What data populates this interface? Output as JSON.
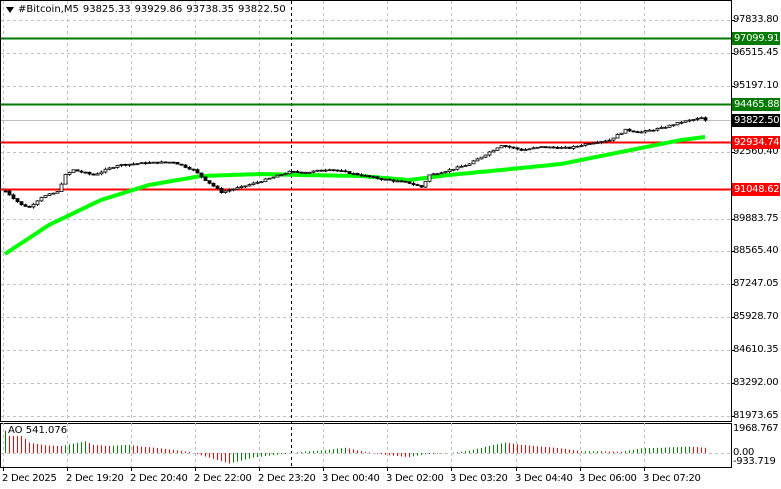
{
  "header": {
    "symbol": "#Bitcoin,M5",
    "open": "93825.33",
    "high": "93929.86",
    "low": "93738.35",
    "close": "93822.50",
    "menu_icon": "triangle-down-icon"
  },
  "price_axis": [
    "97833.80",
    "96515.45",
    "95197.10",
    "92560.40",
    "89883.75",
    "88565.40",
    "87247.05",
    "85928.70",
    "84610.35",
    "83292.00",
    "81973.65"
  ],
  "price_levels": [
    97833.8,
    96515.45,
    95197.1,
    92560.4,
    89883.75,
    88565.4,
    87247.05,
    85928.7,
    84610.35,
    83292.0,
    81973.65
  ],
  "levels": [
    {
      "label": "97099.91",
      "value": 97099.91,
      "color": "#007a00"
    },
    {
      "label": "94465.88",
      "value": 94465.88,
      "color": "#007a00"
    },
    {
      "label": "92934.74",
      "value": 92934.74,
      "color": "#ff0000"
    },
    {
      "label": "91048.62",
      "value": 91048.62,
      "color": "#ff0000"
    }
  ],
  "current_price": {
    "label": "93822.50",
    "value": 93822.5,
    "color": "#000000"
  },
  "time_axis": [
    "2 Dec 2025",
    "2 Dec 19:20",
    "2 Dec 20:40",
    "2 Dec 22:00",
    "2 Dec 23:20",
    "3 Dec 00:40",
    "3 Dec 02:00",
    "3 Dec 03:20",
    "3 Dec 04:40",
    "3 Dec 06:00",
    "3 Dec 07:20"
  ],
  "indicator": {
    "label": "AO 541.076",
    "axis_top": "1968.767",
    "axis_zero": "0.00",
    "axis_bottom": "-933.719",
    "up_color": "#008000",
    "down_color": "#ff0000"
  },
  "chart_data": {
    "type": "candlestick",
    "timeframe": "M5",
    "ylim": [
      81973.65,
      97833.8
    ],
    "close_path": [
      [
        0,
        90985
      ],
      [
        4,
        90425
      ],
      [
        6,
        90345
      ],
      [
        9,
        90745
      ],
      [
        13,
        90945
      ],
      [
        15,
        91626
      ],
      [
        17,
        91826
      ],
      [
        22,
        91626
      ],
      [
        28,
        92026
      ],
      [
        35,
        92107
      ],
      [
        42,
        92147
      ],
      [
        47,
        91826
      ],
      [
        50,
        91426
      ],
      [
        54,
        90945
      ],
      [
        59,
        91145
      ],
      [
        64,
        91386
      ],
      [
        71,
        91746
      ],
      [
        76,
        91746
      ],
      [
        81,
        91866
      ],
      [
        86,
        91706
      ],
      [
        94,
        91466
      ],
      [
        101,
        91306
      ],
      [
        104,
        91145
      ],
      [
        106,
        91626
      ],
      [
        111,
        91826
      ],
      [
        116,
        92067
      ],
      [
        121,
        92547
      ],
      [
        124,
        92827
      ],
      [
        129,
        92627
      ],
      [
        134,
        92747
      ],
      [
        141,
        92707
      ],
      [
        146,
        92907
      ],
      [
        151,
        93028
      ],
      [
        155,
        93428
      ],
      [
        159,
        93348
      ],
      [
        164,
        93508
      ],
      [
        169,
        93748
      ],
      [
        174,
        93909
      ],
      [
        175,
        93822.5
      ]
    ],
    "ma_path": [
      [
        0,
        88463
      ],
      [
        11,
        89625
      ],
      [
        24,
        90626
      ],
      [
        36,
        91226
      ],
      [
        49,
        91586
      ],
      [
        64,
        91666
      ],
      [
        74,
        91626
      ],
      [
        89,
        91586
      ],
      [
        101,
        91426
      ],
      [
        111,
        91626
      ],
      [
        124,
        91826
      ],
      [
        139,
        92067
      ],
      [
        154,
        92547
      ],
      [
        169,
        93028
      ],
      [
        175,
        93148
      ]
    ],
    "ma_color": "#00ff00",
    "ao_path": [
      [
        0,
        1900
      ],
      [
        4,
        1500
      ],
      [
        6,
        900
      ],
      [
        10,
        650
      ],
      [
        14,
        600
      ],
      [
        17,
        800
      ],
      [
        20,
        1000
      ],
      [
        22,
        700
      ],
      [
        26,
        600
      ],
      [
        31,
        700
      ],
      [
        34,
        550
      ],
      [
        39,
        400
      ],
      [
        46,
        100
      ],
      [
        50,
        -300
      ],
      [
        56,
        -900
      ],
      [
        62,
        -400
      ],
      [
        69,
        -100
      ],
      [
        74,
        100
      ],
      [
        80,
        250
      ],
      [
        85,
        450
      ],
      [
        90,
        100
      ],
      [
        96,
        -200
      ],
      [
        101,
        -350
      ],
      [
        105,
        -100
      ],
      [
        111,
        0
      ],
      [
        116,
        200
      ],
      [
        121,
        600
      ],
      [
        125,
        900
      ],
      [
        129,
        700
      ],
      [
        134,
        550
      ],
      [
        139,
        400
      ],
      [
        144,
        150
      ],
      [
        149,
        150
      ],
      [
        154,
        100
      ],
      [
        159,
        400
      ],
      [
        164,
        450
      ],
      [
        171,
        550
      ],
      [
        175,
        450
      ]
    ]
  }
}
